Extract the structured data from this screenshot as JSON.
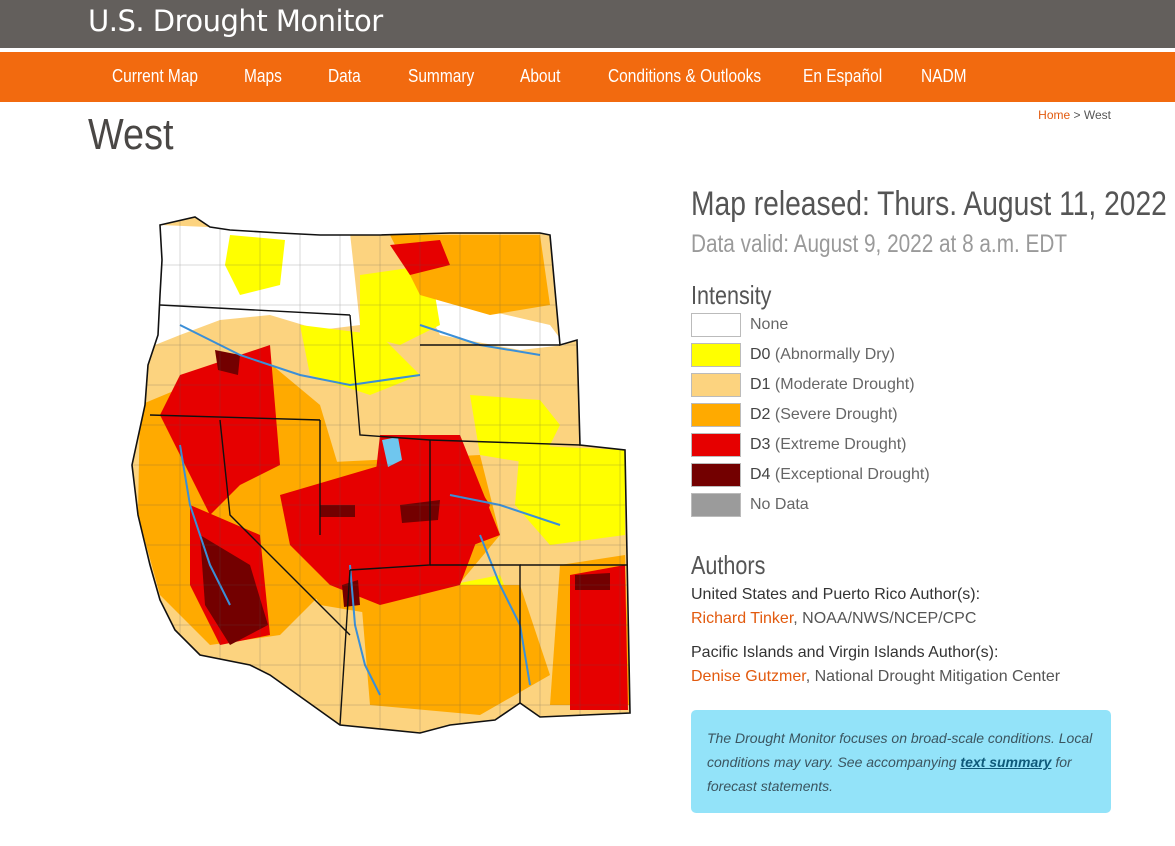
{
  "site": {
    "title": "U.S. Drought Monitor"
  },
  "nav": {
    "items": [
      {
        "label": "Current Map"
      },
      {
        "label": "Maps"
      },
      {
        "label": "Data"
      },
      {
        "label": "Summary"
      },
      {
        "label": "About"
      },
      {
        "label": "Conditions & Outlooks"
      },
      {
        "label": "En Español"
      },
      {
        "label": "NADM"
      }
    ]
  },
  "breadcrumb": {
    "home": "Home",
    "separator": ">",
    "current": "West"
  },
  "page": {
    "title": "West"
  },
  "map": {
    "release_text": "Map released: Thurs. August 11, 2022",
    "valid_text": "Data valid: August 9, 2022 at 8 a.m. EDT"
  },
  "legend": {
    "title": "Intensity",
    "items": [
      {
        "code": "",
        "label": "None",
        "color": "#ffffff"
      },
      {
        "code": "D0",
        "label": "(Abnormally Dry)",
        "color": "#ffff00"
      },
      {
        "code": "D1",
        "label": "(Moderate Drought)",
        "color": "#fcd37f"
      },
      {
        "code": "D2",
        "label": "(Severe Drought)",
        "color": "#ffaa00"
      },
      {
        "code": "D3",
        "label": "(Extreme Drought)",
        "color": "#e60000"
      },
      {
        "code": "D4",
        "label": "(Exceptional Drought)",
        "color": "#730000"
      },
      {
        "code": "",
        "label": "No Data",
        "color": "#9b9b9b"
      }
    ]
  },
  "authors": {
    "title": "Authors",
    "groups": [
      {
        "heading": "United States and Puerto Rico Author(s):",
        "name": "Richard Tinker",
        "org": ", NOAA/NWS/NCEP/CPC"
      },
      {
        "heading": "Pacific Islands and Virgin Islands Author(s):",
        "name": "Denise Gutzmer",
        "org": ", National Drought Mitigation Center"
      }
    ]
  },
  "note": {
    "before": "The Drought Monitor focuses on broad-scale conditions. Local conditions may vary. See accompanying ",
    "link": "text summary",
    "after": " for forecast statements."
  },
  "colors": {
    "header_bg": "#635f5c",
    "nav_bg": "#f26a0f",
    "link": "#e25a0e",
    "note_bg": "#93e3f9"
  }
}
